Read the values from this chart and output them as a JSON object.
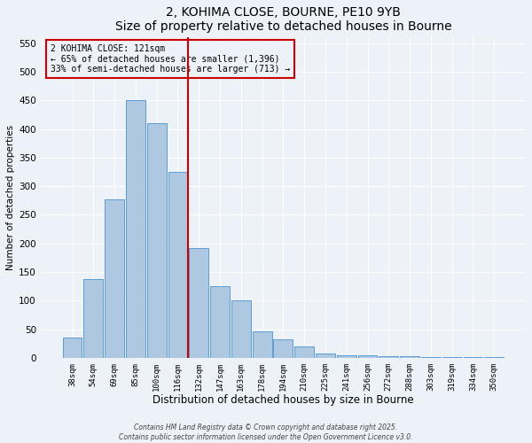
{
  "title": "2, KOHIMA CLOSE, BOURNE, PE10 9YB",
  "subtitle": "Size of property relative to detached houses in Bourne",
  "xlabel": "Distribution of detached houses by size in Bourne",
  "ylabel": "Number of detached properties",
  "bin_labels": [
    "38sqm",
    "54sqm",
    "69sqm",
    "85sqm",
    "100sqm",
    "116sqm",
    "132sqm",
    "147sqm",
    "163sqm",
    "178sqm",
    "194sqm",
    "210sqm",
    "225sqm",
    "241sqm",
    "256sqm",
    "272sqm",
    "288sqm",
    "303sqm",
    "319sqm",
    "334sqm",
    "350sqm"
  ],
  "bar_heights": [
    35,
    137,
    277,
    450,
    410,
    325,
    192,
    125,
    100,
    46,
    32,
    20,
    7,
    5,
    5,
    3,
    2,
    1,
    1,
    1,
    1
  ],
  "bar_color": "#adc8e0",
  "bar_edge_color": "#5b9bd5",
  "vline_x_index": 5,
  "vline_color": "#cc0000",
  "annotation_line1": "2 KOHIMA CLOSE: 121sqm",
  "annotation_line2": "← 65% of detached houses are smaller (1,396)",
  "annotation_line3": "33% of semi-detached houses are larger (713) →",
  "annotation_box_color": "#cc0000",
  "ylim": [
    0,
    560
  ],
  "yticks": [
    0,
    50,
    100,
    150,
    200,
    250,
    300,
    350,
    400,
    450,
    500,
    550
  ],
  "footer1": "Contains HM Land Registry data © Crown copyright and database right 2025.",
  "footer2": "Contains public sector information licensed under the Open Government Licence v3.0.",
  "bg_color": "#edf2f9",
  "grid_color": "#ffffff"
}
